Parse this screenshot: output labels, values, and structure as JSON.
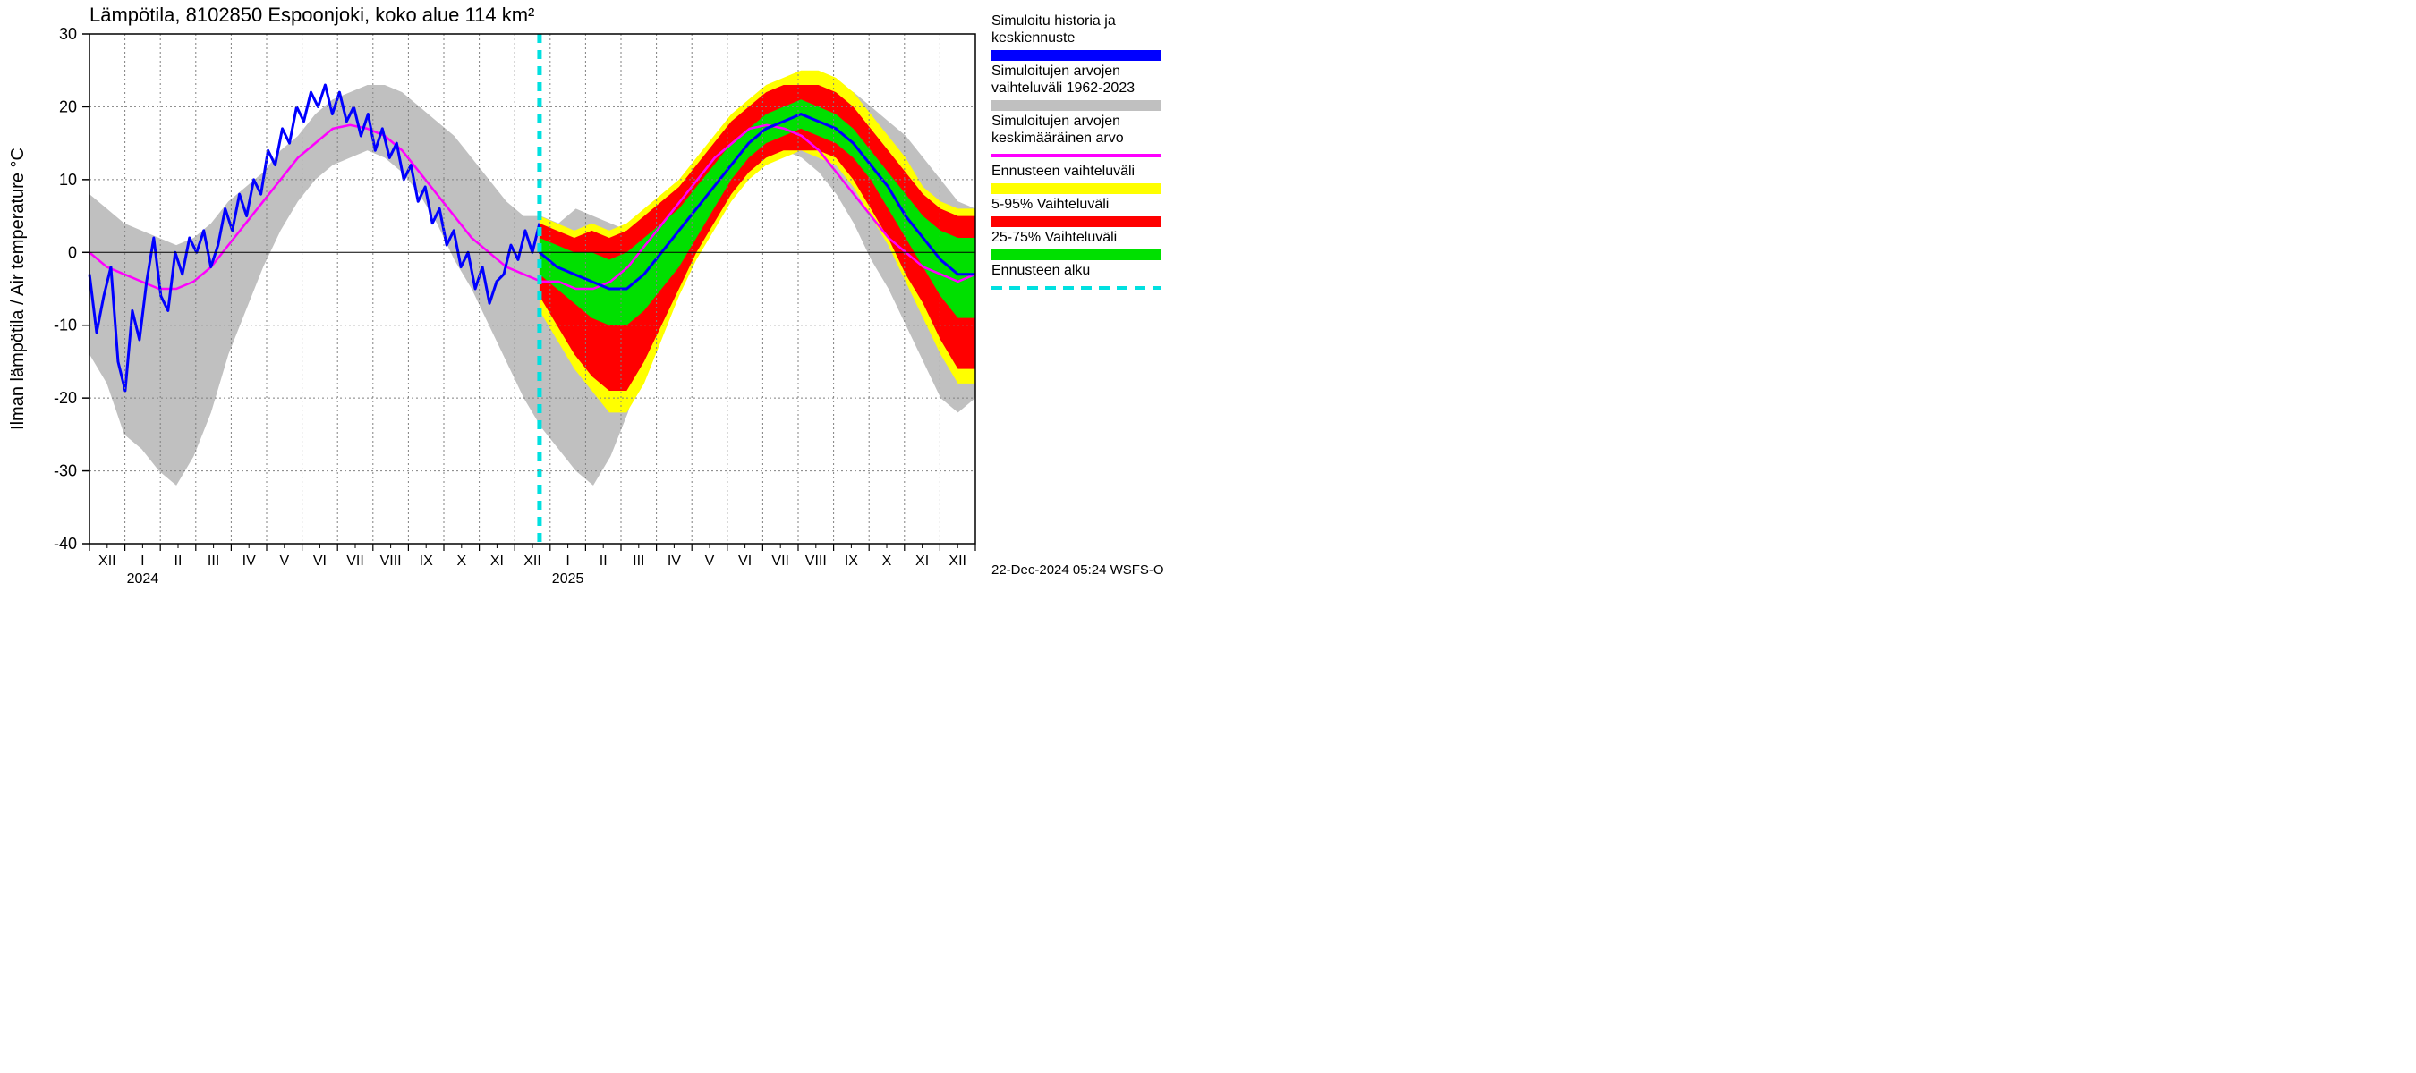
{
  "chart": {
    "type": "line-band",
    "title": "Lämpötila, 8102850 Espoonjoki, koko alue 114 km²",
    "yaxis_label": "Ilman lämpötila / Air temperature    °C",
    "footer": "22-Dec-2024 05:24 WSFS-O",
    "background_color": "#ffffff",
    "plot_border_color": "#000000",
    "grid_color": "#808080",
    "grid_dash": "2,3",
    "solid_y_at": 0,
    "ylim": [
      -40,
      30
    ],
    "yticks": [
      -40,
      -30,
      -20,
      -10,
      0,
      10,
      20,
      30
    ],
    "ytick_labels": [
      "-40",
      "-30",
      "-20",
      "-10",
      "0",
      "10",
      "20",
      "30"
    ],
    "x_months": [
      "XII",
      "I",
      "II",
      "III",
      "IV",
      "V",
      "VI",
      "VII",
      "VIII",
      "IX",
      "X",
      "XI",
      "XII",
      "I",
      "II",
      "III",
      "IV",
      "V",
      "VI",
      "VII",
      "VIII",
      "IX",
      "X",
      "XI",
      "XII"
    ],
    "year_labels": [
      {
        "text": "2024",
        "at_month_index": 1.5
      },
      {
        "text": "2025",
        "at_month_index": 13.5
      }
    ],
    "forecast_start_month_index": 12.7,
    "colors": {
      "history_median": "#0000ff",
      "range_historic": "#c0c0c0",
      "mean_historic": "#ff00ff",
      "forecast_full": "#ffff00",
      "forecast_5_95": "#ff0000",
      "forecast_25_75": "#00e000",
      "forecast_start_line": "#00e0e0"
    },
    "line_widths": {
      "history_median": 3,
      "mean_historic": 2.5,
      "forecast_start_line": 5
    },
    "legend": [
      {
        "label_lines": [
          "Simuloitu historia ja",
          "keskiennuste"
        ],
        "swatch_color": "#0000ff",
        "swatch_thick": true
      },
      {
        "label_lines": [
          "Simuloitujen arvojen",
          "vaihteluväli 1962-2023"
        ],
        "swatch_color": "#c0c0c0",
        "swatch_thick": true
      },
      {
        "label_lines": [
          "Simuloitujen arvojen",
          "keskimääräinen arvo"
        ],
        "swatch_color": "#ff00ff",
        "swatch_thick": false
      },
      {
        "label_lines": [
          "Ennusteen vaihteluväli"
        ],
        "swatch_color": "#ffff00",
        "swatch_thick": true
      },
      {
        "label_lines": [
          "5-95% Vaihteluväli"
        ],
        "swatch_color": "#ff0000",
        "swatch_thick": true
      },
      {
        "label_lines": [
          "25-75% Vaihteluväli"
        ],
        "swatch_color": "#00e000",
        "swatch_thick": true
      },
      {
        "label_lines": [
          "Ennusteen alku"
        ],
        "swatch_color": "#00e0e0",
        "swatch_dashed": true,
        "swatch_thick": false
      }
    ],
    "series": {
      "historic_band": {
        "upper": [
          8,
          6,
          4,
          3,
          2,
          1,
          2,
          4,
          7,
          9,
          11,
          14,
          16,
          19,
          21,
          22,
          23,
          23,
          22,
          20,
          18,
          16,
          13,
          10,
          7,
          5,
          5,
          4,
          6,
          5,
          4,
          3,
          2,
          4,
          7,
          9,
          11,
          14,
          16,
          19,
          21,
          22,
          23,
          23,
          22,
          20,
          18,
          16,
          13,
          10,
          7,
          6
        ],
        "lower": [
          -14,
          -18,
          -25,
          -27,
          -30,
          -32,
          -28,
          -22,
          -14,
          -8,
          -2,
          3,
          7,
          10,
          12,
          13,
          14,
          13,
          11,
          8,
          4,
          -1,
          -5,
          -10,
          -15,
          -20,
          -24,
          -27,
          -30,
          -32,
          -28,
          -22,
          -14,
          -8,
          -2,
          3,
          7,
          10,
          12,
          13,
          14,
          13,
          11,
          8,
          4,
          -1,
          -5,
          -10,
          -15,
          -20,
          -22,
          -20
        ]
      },
      "mean_historic": [
        0,
        -2,
        -3,
        -4,
        -5,
        -5,
        -4,
        -2,
        1,
        4,
        7,
        10,
        13,
        15,
        17,
        17.5,
        17,
        16,
        14,
        11,
        8,
        5,
        2,
        0,
        -2,
        -3,
        -4,
        -4,
        -5,
        -5,
        -4,
        -2,
        1,
        4,
        7,
        10,
        13,
        15,
        17,
        17.5,
        17,
        16,
        14,
        11,
        8,
        5,
        2,
        0,
        -2,
        -3,
        -4,
        -3
      ],
      "history_median": [
        -3,
        -11,
        -6,
        -2,
        -15,
        -19,
        -8,
        -12,
        -4,
        2,
        -6,
        -8,
        0,
        -3,
        2,
        0,
        3,
        -2,
        1,
        6,
        3,
        8,
        5,
        10,
        8,
        14,
        12,
        17,
        15,
        20,
        18,
        22,
        20,
        23,
        19,
        22,
        18,
        20,
        16,
        19,
        14,
        17,
        13,
        15,
        10,
        12,
        7,
        9,
        4,
        6,
        1,
        3,
        -2,
        0,
        -5,
        -2,
        -7,
        -4,
        -3,
        1,
        -1,
        3,
        0,
        4
      ],
      "forecast_full": {
        "upper": [
          5,
          4,
          3,
          4,
          3,
          4,
          6,
          8,
          10,
          13,
          16,
          19,
          21,
          23,
          24,
          25,
          25,
          24,
          22,
          19,
          16,
          13,
          9,
          7,
          6,
          6
        ],
        "lower": [
          -8,
          -12,
          -16,
          -19,
          -22,
          -22,
          -18,
          -12,
          -6,
          -1,
          3,
          7,
          10,
          12,
          13,
          14,
          13,
          12,
          9,
          5,
          1,
          -4,
          -9,
          -14,
          -18,
          -18
        ]
      },
      "forecast_5_95": {
        "upper": [
          4,
          3,
          2,
          3,
          2,
          3,
          5,
          7,
          9,
          12,
          15,
          18,
          20,
          22,
          23,
          23,
          23,
          22,
          20,
          17,
          14,
          11,
          8,
          6,
          5,
          5
        ],
        "lower": [
          -6,
          -10,
          -14,
          -17,
          -19,
          -19,
          -15,
          -10,
          -5,
          0,
          4,
          8,
          11,
          13,
          14,
          14,
          14,
          13,
          10,
          6,
          2,
          -3,
          -7,
          -12,
          -16,
          -16
        ]
      },
      "forecast_25_75": {
        "upper": [
          2,
          1,
          0,
          0,
          -1,
          0,
          2,
          4,
          6,
          9,
          12,
          15,
          17,
          19,
          20,
          21,
          20,
          19,
          17,
          14,
          11,
          8,
          5,
          3,
          2,
          2
        ],
        "lower": [
          -3,
          -5,
          -7,
          -9,
          -10,
          -10,
          -8,
          -5,
          -2,
          2,
          6,
          10,
          13,
          15,
          16,
          17,
          16,
          15,
          13,
          10,
          6,
          2,
          -2,
          -6,
          -9,
          -9
        ]
      },
      "forecast_median": [
        0,
        -2,
        -3,
        -4,
        -5,
        -5,
        -3,
        0,
        3,
        6,
        9,
        12,
        15,
        17,
        18,
        19,
        18,
        17,
        15,
        12,
        9,
        5,
        2,
        -1,
        -3,
        -3
      ]
    }
  }
}
